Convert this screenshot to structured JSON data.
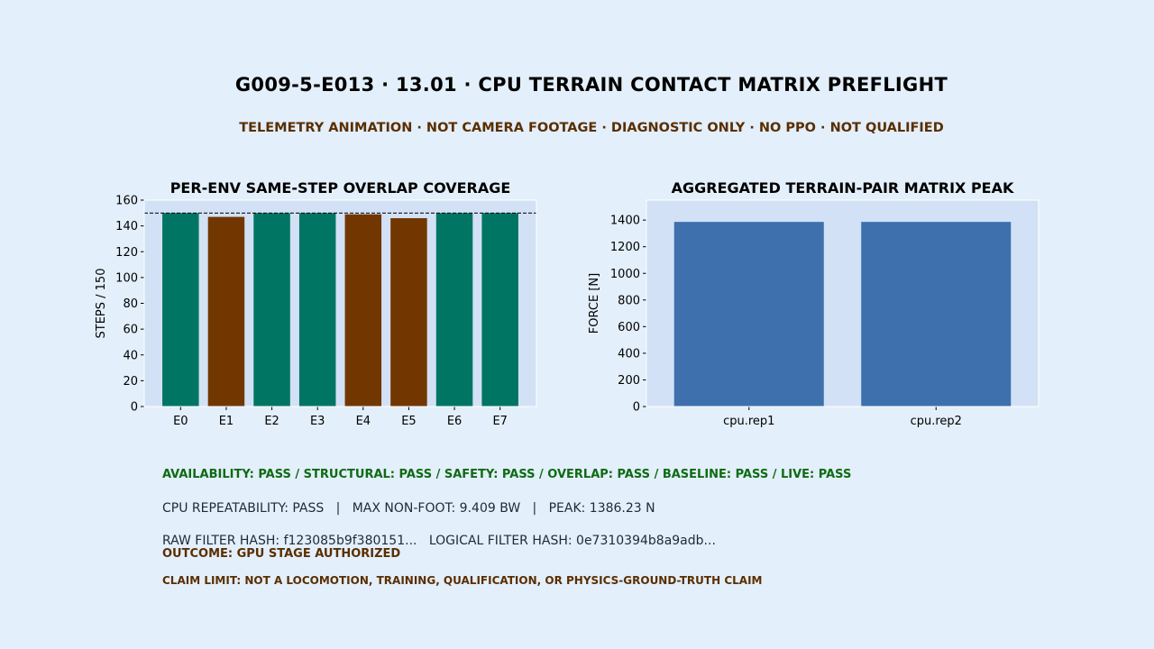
{
  "header": {
    "title": "G009-5-E013 · 13.01 · CPU TERRAIN CONTACT MATRIX PREFLIGHT",
    "subtitle": "TELEMETRY ANIMATION · NOT CAMERA FOOTAGE · DIAGNOSTIC ONLY · NO PPO · NOT QUALIFIED"
  },
  "chart_data": [
    {
      "type": "bar",
      "title": "PER-ENV SAME-STEP OVERLAP COVERAGE",
      "xlabel": "",
      "ylabel": "STEPS / 150",
      "categories": [
        "E0",
        "E1",
        "E2",
        "E3",
        "E4",
        "E5",
        "E6",
        "E7"
      ],
      "values": [
        150,
        147,
        150,
        150,
        149,
        146,
        150,
        150
      ],
      "bar_colors": [
        "#007563",
        "#723700",
        "#007563",
        "#007563",
        "#723700",
        "#723700",
        "#007563",
        "#007563"
      ],
      "ylim": [
        0,
        160
      ],
      "yticks": [
        0,
        20,
        40,
        60,
        80,
        100,
        120,
        140,
        160
      ],
      "reference_line": 150,
      "grid": false
    },
    {
      "type": "bar",
      "title": "AGGREGATED TERRAIN-PAIR MATRIX PEAK",
      "xlabel": "",
      "ylabel": "FORCE [N]",
      "categories": [
        "cpu.rep1",
        "cpu.rep2"
      ],
      "values": [
        1386.23,
        1386.23
      ],
      "bar_colors": [
        "#3d70ad",
        "#3d70ad"
      ],
      "ylim": [
        0,
        1550
      ],
      "yticks": [
        0,
        200,
        400,
        600,
        800,
        1000,
        1200,
        1400
      ],
      "grid": false
    }
  ],
  "colors": {
    "background": "#e3effa",
    "plot_background": "#d2e1f5",
    "pass_green": "#0d6b13",
    "warning_brown": "#5a2e00"
  },
  "summary": {
    "status_line": "AVAILABILITY: PASS / STRUCTURAL: PASS / SAFETY: PASS / OVERLAP: PASS / BASELINE: PASS / LIVE: PASS",
    "repeatability_line": "CPU REPEATABILITY: PASS   |   MAX NON-FOOT: 9.409 BW   |   PEAK: 1386.23 N",
    "hash_line": "RAW FILTER HASH: f123085b9f380151...   LOGICAL FILTER HASH: 0e7310394b8a9adb...",
    "outcome": "OUTCOME: GPU STAGE AUTHORIZED",
    "claim_limit": "CLAIM LIMIT: NOT A LOCOMOTION, TRAINING, QUALIFICATION, OR PHYSICS-GROUND-TRUTH CLAIM"
  }
}
